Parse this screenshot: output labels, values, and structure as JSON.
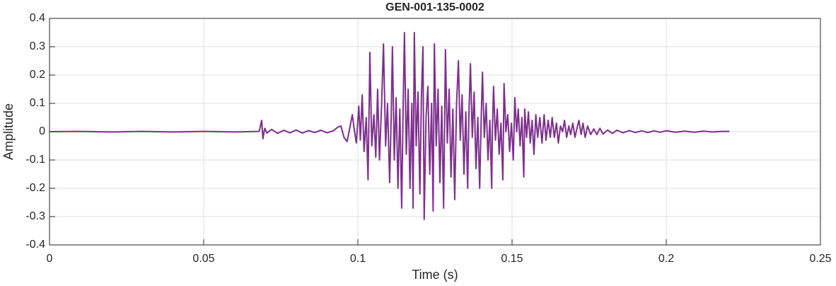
{
  "chart_data": {
    "type": "line",
    "title": "GEN-001-135-0002",
    "x_label": "Time (s)",
    "y_label": "Amplitude",
    "xlim": [
      0,
      0.25
    ],
    "xticks": [
      0,
      0.05,
      0.1,
      0.15,
      0.2,
      0.25
    ],
    "ylim": [
      -0.4,
      0.4
    ],
    "yticks": [
      -0.4,
      -0.3,
      -0.2,
      -0.1,
      0,
      0.1,
      0.2,
      0.3,
      0.4
    ],
    "grid": true,
    "x": [
      0,
      0.01,
      0.02,
      0.03,
      0.04,
      0.05,
      0.06,
      0.068,
      0.0688,
      0.0692,
      0.0698,
      0.0705,
      0.072,
      0.074,
      0.076,
      0.078,
      0.08,
      0.082,
      0.084,
      0.086,
      0.088,
      0.09,
      0.092,
      0.0935,
      0.0945,
      0.0955,
      0.0965,
      0.0975,
      0.0982,
      0.0988,
      0.0995,
      0.1003,
      0.1008,
      0.1014,
      0.102,
      0.1027,
      0.1033,
      0.1039,
      0.1045,
      0.1052,
      0.1058,
      0.1064,
      0.107,
      0.1077,
      0.1083,
      0.109,
      0.1096,
      0.1103,
      0.1108,
      0.1112,
      0.1118,
      0.1124,
      0.113,
      0.1136,
      0.1142,
      0.1147,
      0.1151,
      0.1157,
      0.1163,
      0.1169,
      0.1175,
      0.1179,
      0.1183,
      0.1189,
      0.1195,
      0.1201,
      0.1206,
      0.1211,
      0.1215,
      0.1221,
      0.1227,
      0.1233,
      0.1239,
      0.1244,
      0.1248,
      0.1254,
      0.126,
      0.1266,
      0.1272,
      0.1278,
      0.1284,
      0.129,
      0.1296,
      0.1302,
      0.1308,
      0.1314,
      0.132,
      0.1326,
      0.1332,
      0.1338,
      0.1344,
      0.135,
      0.1356,
      0.136,
      0.1365,
      0.1371,
      0.1377,
      0.1383,
      0.1389,
      0.1395,
      0.14,
      0.1404,
      0.141,
      0.1416,
      0.1422,
      0.1428,
      0.1434,
      0.1436,
      0.144,
      0.1446,
      0.1452,
      0.1458,
      0.1464,
      0.147,
      0.1474,
      0.148,
      0.1486,
      0.1492,
      0.1498,
      0.1504,
      0.1509,
      0.1515,
      0.152,
      0.1526,
      0.1532,
      0.1538,
      0.1541,
      0.1547,
      0.1553,
      0.1559,
      0.1565,
      0.1571,
      0.1577,
      0.1583,
      0.159,
      0.1597,
      0.1604,
      0.161,
      0.1617,
      0.1624,
      0.163,
      0.1637,
      0.1644,
      0.165,
      0.1657,
      0.1664,
      0.167,
      0.1677,
      0.1684,
      0.169,
      0.1697,
      0.1704,
      0.171,
      0.1717,
      0.1724,
      0.173,
      0.1737,
      0.1745,
      0.1755,
      0.1765,
      0.1775,
      0.1785,
      0.1795,
      0.181,
      0.1825,
      0.184,
      0.186,
      0.188,
      0.19,
      0.192,
      0.194,
      0.196,
      0.198,
      0.2,
      0.203,
      0.206,
      0.209,
      0.212,
      0.215,
      0.218,
      0.2205
    ],
    "series": [
      {
        "color": "#7e2f8e",
        "values": [
          0,
          0.001,
          -0.001,
          0.001,
          -0.001,
          0.001,
          -0.001,
          0.001,
          0.04,
          -0.025,
          0.012,
          -0.005,
          0.008,
          -0.006,
          0.005,
          -0.004,
          0.006,
          -0.005,
          0.004,
          -0.003,
          0.005,
          -0.004,
          0.003,
          0.016,
          0.02,
          -0.02,
          -0.035,
          0.02,
          0.06,
          0.01,
          -0.04,
          0.09,
          -0.03,
          0.13,
          -0.07,
          0.05,
          -0.17,
          0.28,
          -0.05,
          0.06,
          -0.09,
          0.15,
          -0.1,
          0.1,
          0.31,
          -0.05,
          0.1,
          -0.18,
          0.05,
          0.3,
          -0.1,
          0.12,
          -0.2,
          0.08,
          -0.27,
          0.1,
          0.35,
          -0.08,
          0.15,
          -0.2,
          0.1,
          -0.27,
          0.35,
          -0.05,
          0.14,
          -0.22,
          0.12,
          0.3,
          -0.31,
          0.05,
          0.16,
          -0.15,
          0.1,
          -0.28,
          0.31,
          -0.05,
          0.15,
          -0.18,
          0.09,
          -0.27,
          0.29,
          -0.04,
          0.15,
          -0.16,
          0.08,
          -0.24,
          0.1,
          0.25,
          -0.03,
          0.13,
          -0.15,
          0.07,
          -0.2,
          0.06,
          0.24,
          -0.02,
          0.14,
          -0.13,
          0.05,
          -0.2,
          0.05,
          0.21,
          -0.02,
          0.1,
          -0.1,
          0.04,
          -0.2,
          0,
          0.16,
          -0.03,
          0.08,
          -0.08,
          0.03,
          -0.17,
          0.17,
          0,
          0.06,
          -0.07,
          0.03,
          -0.1,
          0.12,
          0,
          0.08,
          -0.05,
          0.05,
          -0.16,
          0.08,
          -0.02,
          0.07,
          -0.04,
          0.04,
          -0.08,
          0.06,
          -0.02,
          0.05,
          -0.04,
          0.06,
          -0.03,
          0.04,
          -0.02,
          0.05,
          -0.02,
          0.03,
          -0.04,
          0.02,
          0,
          0.04,
          -0.02,
          0.02,
          -0.01,
          0.03,
          -0.02,
          0.01,
          0.04,
          -0.01,
          0.03,
          -0.02,
          0.02,
          -0.01,
          0.01,
          -0.01,
          0.012,
          -0.008,
          0.006,
          -0.006,
          0.005,
          -0.004,
          0.004,
          -0.003,
          0.003,
          -0.003,
          0.003,
          -0.002,
          0.003,
          -0.002,
          0.002,
          -0.002,
          0.002,
          -0.001,
          0.001,
          0.001
        ]
      }
    ]
  }
}
